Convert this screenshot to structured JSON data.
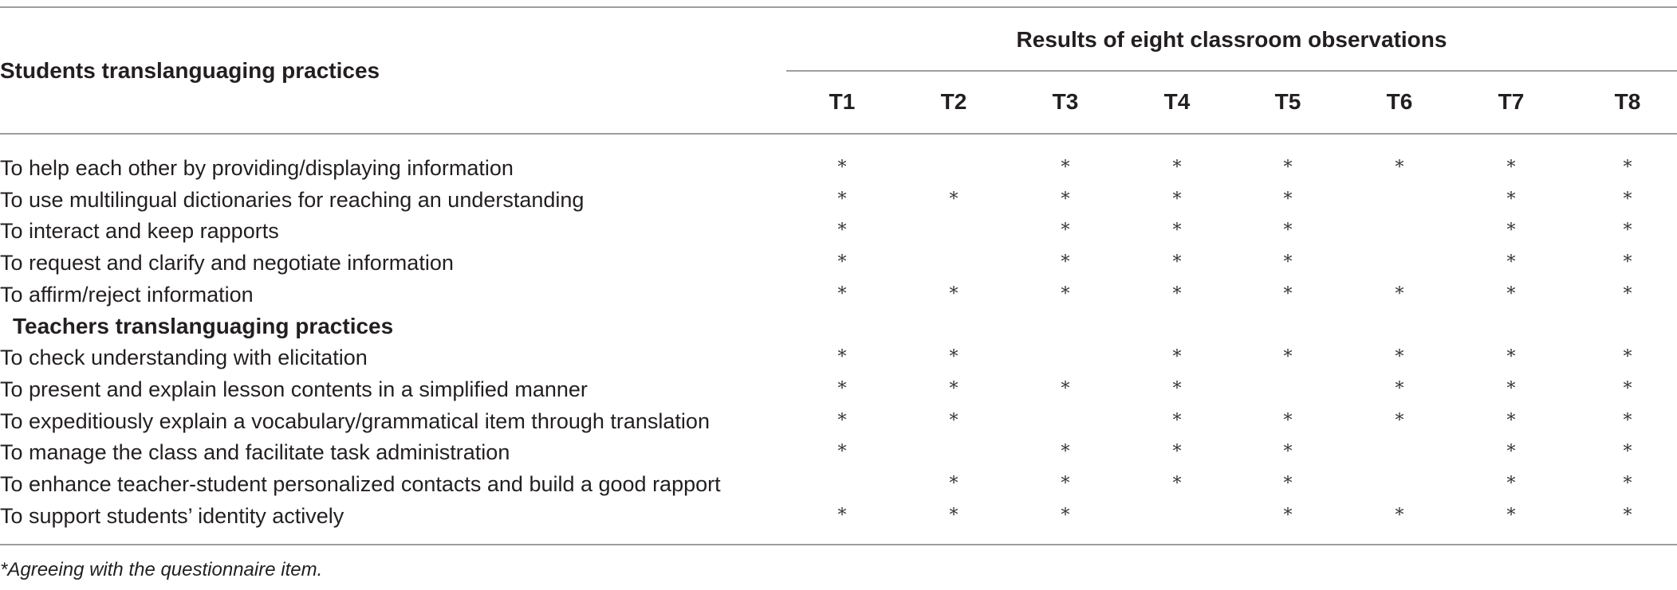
{
  "table": {
    "stub_header": "Students translanguaging practices",
    "group_header": "Results of eight classroom observations",
    "columns": [
      "T1",
      "T2",
      "T3",
      "T4",
      "T5",
      "T6",
      "T7",
      "T8"
    ],
    "rows": [
      {
        "kind": "item",
        "label": "To help each other by providing/displaying information",
        "cells": [
          "*",
          "",
          "*",
          "*",
          "*",
          "*",
          "*",
          "*"
        ]
      },
      {
        "kind": "item",
        "label": "To use multilingual dictionaries for reaching an understanding",
        "cells": [
          "*",
          "*",
          "*",
          "*",
          "*",
          "",
          "*",
          "*"
        ]
      },
      {
        "kind": "item",
        "label": "To interact and keep rapports",
        "cells": [
          "*",
          "",
          "*",
          "*",
          "*",
          "",
          "*",
          "*"
        ]
      },
      {
        "kind": "item",
        "label": "To request and clarify and negotiate information",
        "cells": [
          "*",
          "",
          "*",
          "*",
          "*",
          "",
          "*",
          "*"
        ]
      },
      {
        "kind": "item",
        "label": "To affirm/reject information",
        "cells": [
          "*",
          "*",
          "*",
          "*",
          "*",
          "*",
          "*",
          "*"
        ]
      },
      {
        "kind": "section",
        "label": "Teachers translanguaging practices",
        "cells": []
      },
      {
        "kind": "item",
        "label": "To check understanding with elicitation",
        "cells": [
          "*",
          "*",
          "",
          "*",
          "*",
          "*",
          "*",
          "*"
        ]
      },
      {
        "kind": "item",
        "label": "To present and explain lesson contents in a simplified manner",
        "cells": [
          "*",
          "*",
          "*",
          "*",
          "",
          "*",
          "*",
          "*"
        ]
      },
      {
        "kind": "item",
        "label": "To expeditiously explain a vocabulary/grammatical item through translation",
        "cells": [
          "*",
          "*",
          "",
          "*",
          "*",
          "*",
          "*",
          "*"
        ]
      },
      {
        "kind": "item",
        "label": "To manage the class and facilitate task administration",
        "cells": [
          "*",
          "",
          "*",
          "*",
          "*",
          "",
          "*",
          "*"
        ]
      },
      {
        "kind": "item",
        "label": "To enhance teacher-student personalized contacts and build a good rapport",
        "cells": [
          "",
          "*",
          "*",
          "*",
          "*",
          "",
          "*",
          "*"
        ]
      },
      {
        "kind": "item",
        "label": "To support students’ identity actively",
        "cells": [
          "*",
          "*",
          "*",
          "",
          "*",
          "*",
          "*",
          "*"
        ]
      }
    ],
    "footnote": "*Agreeing with the questionnaire item."
  }
}
